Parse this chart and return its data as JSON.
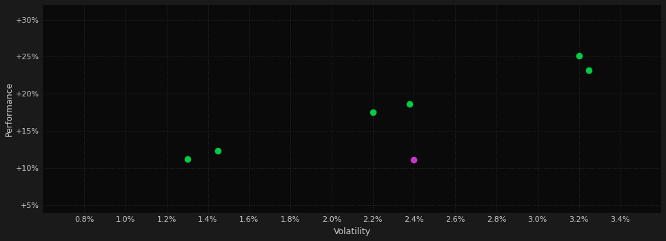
{
  "background_color": "#1a1a1a",
  "plot_bg_color": "#0a0a0a",
  "grid_color": "#2a2a2a",
  "text_color": "#cccccc",
  "xlabel": "Volatility",
  "ylabel": "Performance",
  "xlim": [
    0.006,
    0.036
  ],
  "ylim": [
    0.04,
    0.32
  ],
  "xticks": [
    0.008,
    0.01,
    0.012,
    0.014,
    0.016,
    0.018,
    0.02,
    0.022,
    0.024,
    0.026,
    0.028,
    0.03,
    0.032,
    0.034
  ],
  "yticks": [
    0.05,
    0.1,
    0.15,
    0.2,
    0.25,
    0.3
  ],
  "green_points": [
    [
      0.013,
      0.112
    ],
    [
      0.0145,
      0.123
    ],
    [
      0.022,
      0.175
    ],
    [
      0.0238,
      0.186
    ],
    [
      0.032,
      0.251
    ],
    [
      0.0325,
      0.232
    ]
  ],
  "magenta_points": [
    [
      0.024,
      0.111
    ]
  ],
  "green_color": "#00cc44",
  "magenta_color": "#cc33cc",
  "point_size": 35
}
